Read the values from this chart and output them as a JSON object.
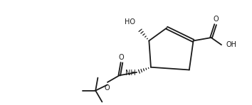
{
  "background": "#ffffff",
  "line_color": "#1a1a1a",
  "line_width": 1.3,
  "font_size": 7.0,
  "figsize": [
    3.54,
    1.48
  ],
  "dpi": 100,
  "xlim": [
    0,
    10.0
  ],
  "ylim": [
    0.0,
    4.0
  ]
}
